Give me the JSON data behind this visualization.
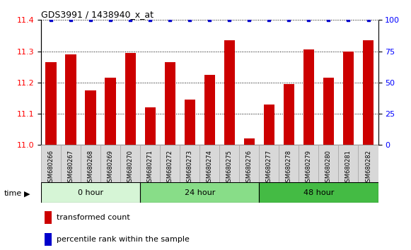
{
  "title": "GDS3991 / 1438940_x_at",
  "categories": [
    "GSM680266",
    "GSM680267",
    "GSM680268",
    "GSM680269",
    "GSM680270",
    "GSM680271",
    "GSM680272",
    "GSM680273",
    "GSM680274",
    "GSM680275",
    "GSM680276",
    "GSM680277",
    "GSM680278",
    "GSM680279",
    "GSM680280",
    "GSM680281",
    "GSM680282"
  ],
  "bar_values": [
    11.265,
    11.29,
    11.175,
    11.215,
    11.295,
    11.12,
    11.265,
    11.145,
    11.225,
    11.335,
    11.02,
    11.13,
    11.195,
    11.305,
    11.215,
    11.3,
    11.335
  ],
  "bar_color": "#cc0000",
  "percentile_color": "#0000cc",
  "ylim_left": [
    11.0,
    11.4
  ],
  "ylim_right": [
    0,
    100
  ],
  "yticks_left": [
    11.0,
    11.1,
    11.2,
    11.3,
    11.4
  ],
  "yticks_right": [
    0,
    25,
    50,
    75,
    100
  ],
  "groups": [
    {
      "label": "0 hour",
      "start": 0,
      "end": 5,
      "color": "#d6f5d6"
    },
    {
      "label": "24 hour",
      "start": 5,
      "end": 11,
      "color": "#88dd88"
    },
    {
      "label": "48 hour",
      "start": 11,
      "end": 17,
      "color": "#44bb44"
    }
  ],
  "time_label": "time",
  "legend_bar_label": "transformed count",
  "legend_pct_label": "percentile rank within the sample",
  "xtick_bg": "#d8d8d8",
  "xtick_border": "#aaaaaa"
}
